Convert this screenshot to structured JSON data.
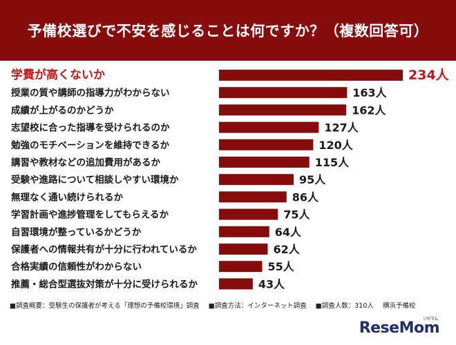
{
  "header": {
    "title": "予備校選びで不安を感じることは何ですか？（複数回答可）"
  },
  "chart_data": {
    "type": "bar",
    "orientation": "horizontal",
    "title": "予備校選びで不安を感じることは何ですか？（複数回答可）",
    "unit": "人",
    "categories": [
      "学費が高くないか",
      "授業の質や講師の指導力がわからない",
      "成績が上がるのかどうか",
      "志望校に合った指導を受けられるのか",
      "勉強のモチベーションを維持できるか",
      "講習や教材などの追加費用があるか",
      "受験や進路について相談しやすい環境か",
      "無理なく通い続けられるか",
      "学習計画や進捗管理をしてもらえるか",
      "自習環境が整っているかどうか",
      "保護者への情報共有が十分に行われているか",
      "合格実績の信頼性がわからない",
      "推薦・総合型選抜対策が十分に受けられるか"
    ],
    "values": [
      234,
      163,
      162,
      127,
      120,
      115,
      95,
      86,
      75,
      64,
      62,
      55,
      43
    ],
    "value_labels": [
      "234人",
      "163人",
      "162人",
      "127人",
      "120人",
      "115人",
      "95人",
      "86人",
      "75人",
      "64人",
      "62人",
      "55人",
      "43人"
    ],
    "highlight_index": 0,
    "colors": {
      "bar": "#870d0d",
      "highlight_text": "#cc1414",
      "header_bg": "#870d0d"
    }
  },
  "footnote": {
    "items": [
      "■調査概要：受験生の保護者が考える「理想の予備校環境」調査",
      "■調査方法：インターネット調査",
      "■調査人数：310人"
    ],
    "source": "横浜予備校"
  },
  "brand": {
    "logo": "ReseMom",
    "logo_sub": "リセマム"
  }
}
